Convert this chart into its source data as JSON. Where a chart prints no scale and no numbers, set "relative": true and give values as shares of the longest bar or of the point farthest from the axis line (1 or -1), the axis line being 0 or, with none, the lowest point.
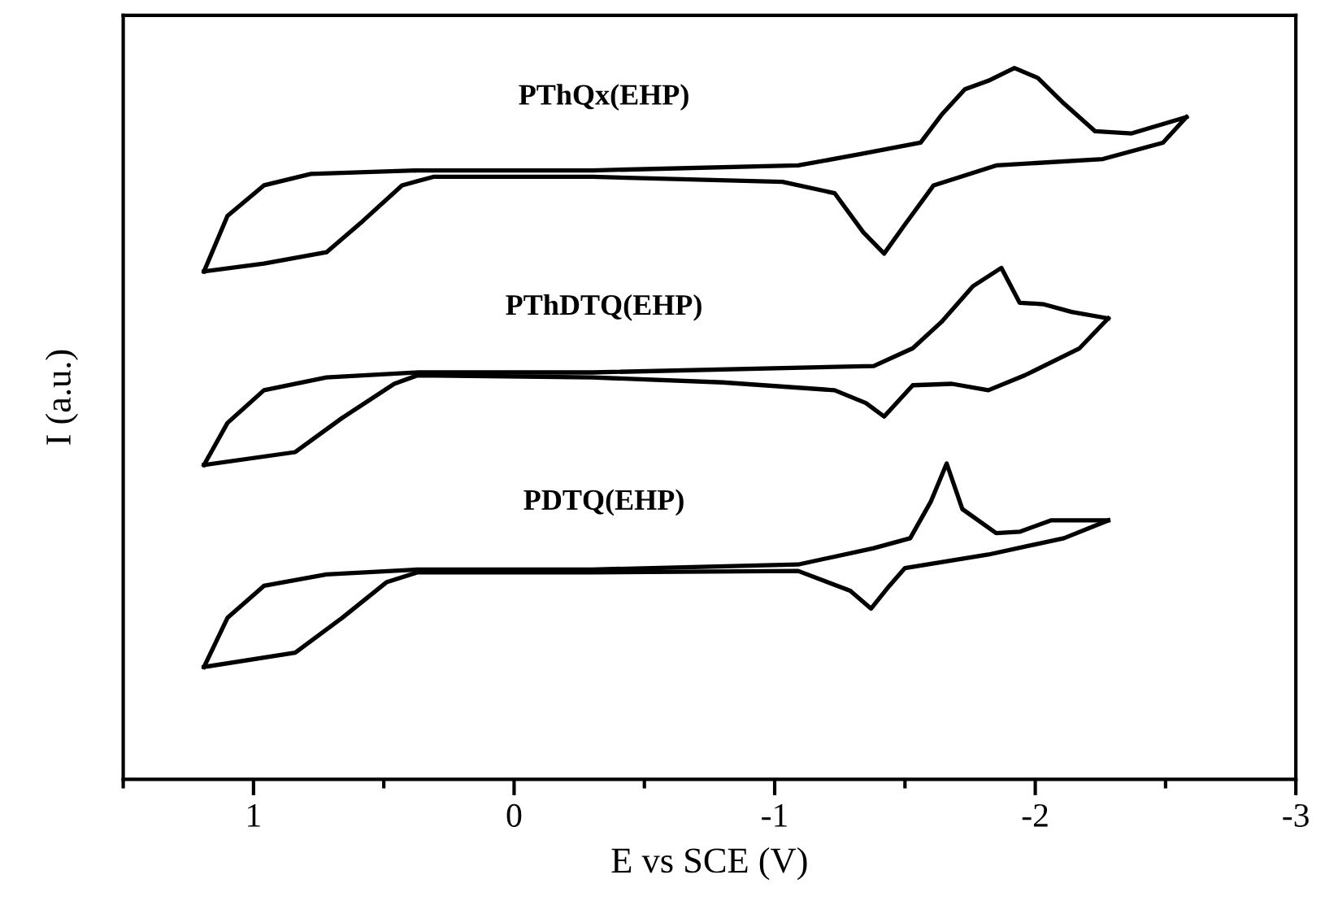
{
  "chart_data": {
    "type": "line",
    "relative": true,
    "xlabel": "E vs SCE (V)",
    "ylabel": "I (a.u.)",
    "xlim": [
      1.5,
      -3
    ],
    "xticks": [
      1,
      0,
      -1,
      -2,
      -3
    ],
    "grid": false,
    "legend": false,
    "marker": "none",
    "line_style": "solid",
    "series": [
      {
        "name": "PThQx(EHP)",
        "color": "#000000",
        "x": [
          1.19,
          1.1,
          0.96,
          0.78,
          0.37,
          -0.3,
          -1.09,
          -1.33,
          -1.56,
          -1.64,
          -1.73,
          -1.82,
          -1.92,
          -2.01,
          -2.11,
          -2.23,
          -2.37,
          -2.58
        ],
        "values": [
          0.714,
          0.792,
          0.835,
          0.851,
          0.856,
          0.856,
          0.863,
          0.879,
          0.895,
          0.934,
          0.97,
          0.982,
          1.0,
          0.986,
          0.95,
          0.911,
          0.908,
          0.931
        ]
      },
      {
        "color": "#000000",
        "x": [
          -2.58,
          -2.49,
          -2.26,
          -1.85,
          -1.61,
          -1.5,
          -1.42,
          -1.34,
          -1.23,
          -1.03,
          -0.3,
          0.31,
          0.43,
          0.58,
          0.72,
          0.96,
          1.19
        ],
        "values": [
          0.931,
          0.895,
          0.872,
          0.863,
          0.835,
          0.78,
          0.739,
          0.769,
          0.824,
          0.84,
          0.847,
          0.847,
          0.835,
          0.785,
          0.741,
          0.725,
          0.714
        ]
      },
      {
        "name": "PThDTQ(EHP)",
        "color": "#000000",
        "x": [
          1.19,
          1.1,
          0.96,
          0.72,
          0.37,
          -0.3,
          -1.38,
          -1.53,
          -1.64,
          -1.76,
          -1.87,
          -1.94,
          -2.03,
          -2.14,
          -2.28
        ],
        "values": [
          0.442,
          0.501,
          0.547,
          0.565,
          0.572,
          0.572,
          0.581,
          0.606,
          0.643,
          0.693,
          0.719,
          0.67,
          0.668,
          0.657,
          0.648
        ]
      },
      {
        "color": "#000000",
        "x": [
          -2.28,
          -2.17,
          -1.96,
          -1.82,
          -1.68,
          -1.53,
          -1.42,
          -1.35,
          -1.23,
          -0.8,
          -0.3,
          0.37,
          0.46,
          0.66,
          0.84,
          1.19
        ],
        "values": [
          0.648,
          0.606,
          0.568,
          0.547,
          0.556,
          0.554,
          0.51,
          0.529,
          0.547,
          0.558,
          0.565,
          0.568,
          0.556,
          0.508,
          0.46,
          0.442
        ]
      },
      {
        "name": "PDTQ(EHP)",
        "color": "#000000",
        "x": [
          1.19,
          1.1,
          0.96,
          0.72,
          0.37,
          -0.3,
          -1.09,
          -1.38,
          -1.52,
          -1.6,
          -1.66,
          -1.72,
          -1.85,
          -1.94,
          -2.06,
          -2.28
        ],
        "values": [
          0.158,
          0.227,
          0.272,
          0.288,
          0.295,
          0.295,
          0.302,
          0.325,
          0.339,
          0.391,
          0.444,
          0.38,
          0.346,
          0.348,
          0.364,
          0.364
        ]
      },
      {
        "color": "#000000",
        "x": [
          -2.28,
          -2.11,
          -1.82,
          -1.5,
          -1.44,
          -1.37,
          -1.29,
          -1.09,
          -0.3,
          0.37,
          0.49,
          0.66,
          0.84,
          1.19
        ],
        "values": [
          0.364,
          0.339,
          0.316,
          0.297,
          0.272,
          0.24,
          0.265,
          0.293,
          0.291,
          0.291,
          0.277,
          0.227,
          0.178,
          0.158
        ]
      }
    ]
  }
}
